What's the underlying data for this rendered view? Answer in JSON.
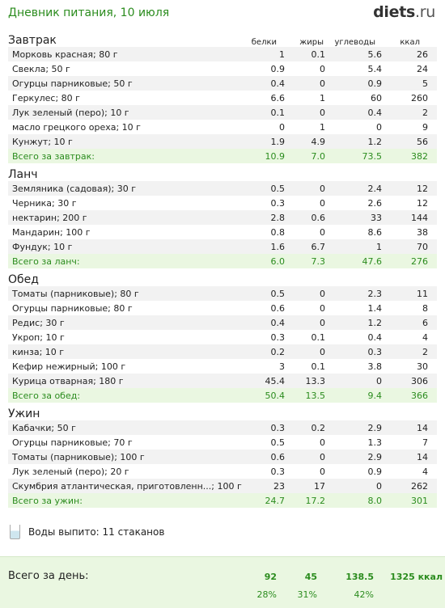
{
  "header": {
    "title": "Дневник питания, 10 июля",
    "logo_main": "diets",
    "logo_tld": ".ru"
  },
  "columns": {
    "protein": "белки",
    "fat": "жиры",
    "carbs": "углеводы",
    "kcal": "ккал"
  },
  "meals": [
    {
      "title": "Завтрак",
      "items": [
        {
          "name": "Морковь красная; 80 г",
          "p": "1",
          "f": "0.1",
          "c": "5.6",
          "k": "26"
        },
        {
          "name": "Свекла; 50 г",
          "p": "0.9",
          "f": "0",
          "c": "5.4",
          "k": "24"
        },
        {
          "name": "Огурцы парниковые; 50 г",
          "p": "0.4",
          "f": "0",
          "c": "0.9",
          "k": "5"
        },
        {
          "name": "Геркулес; 80 г",
          "p": "6.6",
          "f": "1",
          "c": "60",
          "k": "260"
        },
        {
          "name": "Лук зеленый (перо); 10 г",
          "p": "0.1",
          "f": "0",
          "c": "0.4",
          "k": "2"
        },
        {
          "name": "масло грецкого ореха; 10 г",
          "p": "0",
          "f": "1",
          "c": "0",
          "k": "9"
        },
        {
          "name": "Кунжут; 10 г",
          "p": "1.9",
          "f": "4.9",
          "c": "1.2",
          "k": "56"
        }
      ],
      "total": {
        "label": "Всего за завтрак:",
        "p": "10.9",
        "f": "7.0",
        "c": "73.5",
        "k": "382"
      }
    },
    {
      "title": "Ланч",
      "items": [
        {
          "name": "Земляника (садовая); 30 г",
          "p": "0.5",
          "f": "0",
          "c": "2.4",
          "k": "12"
        },
        {
          "name": "Черника; 30 г",
          "p": "0.3",
          "f": "0",
          "c": "2.6",
          "k": "12"
        },
        {
          "name": "нектарин; 200 г",
          "p": "2.8",
          "f": "0.6",
          "c": "33",
          "k": "144"
        },
        {
          "name": "Мандарин; 100 г",
          "p": "0.8",
          "f": "0",
          "c": "8.6",
          "k": "38"
        },
        {
          "name": "Фундук; 10 г",
          "p": "1.6",
          "f": "6.7",
          "c": "1",
          "k": "70"
        }
      ],
      "total": {
        "label": "Всего за ланч:",
        "p": "6.0",
        "f": "7.3",
        "c": "47.6",
        "k": "276"
      }
    },
    {
      "title": "Обед",
      "items": [
        {
          "name": "Томаты (парниковые); 80 г",
          "p": "0.5",
          "f": "0",
          "c": "2.3",
          "k": "11"
        },
        {
          "name": "Огурцы парниковые; 80 г",
          "p": "0.6",
          "f": "0",
          "c": "1.4",
          "k": "8"
        },
        {
          "name": "Редис; 30 г",
          "p": "0.4",
          "f": "0",
          "c": "1.2",
          "k": "6"
        },
        {
          "name": "Укроп; 10 г",
          "p": "0.3",
          "f": "0.1",
          "c": "0.4",
          "k": "4"
        },
        {
          "name": "кинза; 10 г",
          "p": "0.2",
          "f": "0",
          "c": "0.3",
          "k": "2"
        },
        {
          "name": "Кефир нежирный; 100 г",
          "p": "3",
          "f": "0.1",
          "c": "3.8",
          "k": "30"
        },
        {
          "name": "Курица отварная; 180 г",
          "p": "45.4",
          "f": "13.3",
          "c": "0",
          "k": "306"
        }
      ],
      "total": {
        "label": "Всего за обед:",
        "p": "50.4",
        "f": "13.5",
        "c": "9.4",
        "k": "366"
      }
    },
    {
      "title": "Ужин",
      "items": [
        {
          "name": "Кабачки; 50 г",
          "p": "0.3",
          "f": "0.2",
          "c": "2.9",
          "k": "14"
        },
        {
          "name": "Огурцы парниковые; 70 г",
          "p": "0.5",
          "f": "0",
          "c": "1.3",
          "k": "7"
        },
        {
          "name": "Томаты (парниковые); 100 г",
          "p": "0.6",
          "f": "0",
          "c": "2.9",
          "k": "14"
        },
        {
          "name": "Лук зеленый (перо); 20 г",
          "p": "0.3",
          "f": "0",
          "c": "0.9",
          "k": "4"
        },
        {
          "name": "Скумбрия атлантическая, приготовленн...; 100 г",
          "p": "23",
          "f": "17",
          "c": "0",
          "k": "262"
        }
      ],
      "total": {
        "label": "Всего за ужин:",
        "p": "24.7",
        "f": "17.2",
        "c": "8.0",
        "k": "301"
      }
    }
  ],
  "water": {
    "text": "Воды выпито: 11 стаканов",
    "icon": "glass-icon"
  },
  "day": {
    "label": "Всего за день:",
    "p": "92",
    "f": "45",
    "c": "138.5",
    "k": "1325 ккал",
    "p_pct": "28%",
    "f_pct": "31%",
    "c_pct": "42%"
  },
  "colors": {
    "accent": "#2b8c1e",
    "total_bg": "#eaf7e1",
    "row_alt": "#f2f2f2"
  }
}
